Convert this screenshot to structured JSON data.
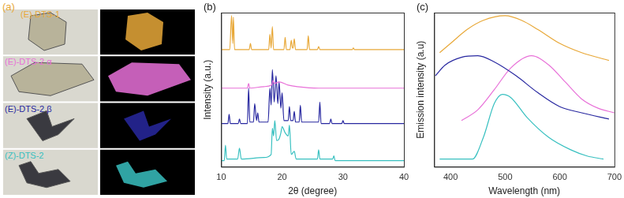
{
  "panel_a": {
    "panel_label": "(a)",
    "samples": [
      {
        "name": "(E)-DTS-1",
        "color": "#e8a838"
      },
      {
        "name": "(E)-DTS-2 α",
        "color": "#e870d8"
      },
      {
        "name": "(E)-DTS-2 β",
        "color": "#2828a0"
      },
      {
        "name": "(Z)-DTS-2",
        "color": "#38c0c0"
      }
    ]
  },
  "chart_data": [
    {
      "type": "line",
      "panel_label": "(b)",
      "x_label": "2θ (degree)",
      "y_label": "Intensity (a.u.)",
      "xlim": [
        10,
        40
      ],
      "xticks": [
        10,
        20,
        30,
        40
      ],
      "ylim": [
        0,
        100
      ],
      "tick_labels": "x",
      "grid": false,
      "series": [
        {
          "name": "(E)-DTS-1",
          "color": "#e8a838",
          "x": [
            10,
            11.4,
            11.7,
            11.9,
            12.0,
            12.2,
            14.6,
            14.8,
            15.0,
            17.8,
            18.0,
            18.2,
            18.4,
            18.6,
            20.3,
            20.5,
            20.7,
            21.3,
            21.5,
            21.7,
            21.8,
            22.0,
            22.2,
            24.1,
            24.3,
            24.5,
            25.8,
            26.0,
            26.2,
            31.5,
            31.7,
            31.9,
            40
          ],
          "values": [
            76,
            76,
            98,
            80,
            97,
            76,
            76,
            80,
            76,
            76,
            86,
            77,
            91,
            76,
            76,
            84,
            76,
            76,
            82,
            77,
            77,
            83,
            76,
            76,
            85,
            76,
            76,
            78,
            76,
            76,
            77,
            76,
            76
          ]
        },
        {
          "name": "(E)-DTS-2 α",
          "color": "#e870d8",
          "x": [
            10,
            14.3,
            14.5,
            14.7,
            17,
            18.3,
            18.5,
            18.7,
            19.5,
            21,
            22.5,
            26,
            40
          ],
          "values": [
            51,
            51,
            54,
            51,
            52,
            53,
            56,
            54,
            55,
            53,
            52,
            51,
            51
          ]
        },
        {
          "name": "(E)-DTS-2 β",
          "color": "#2828a0",
          "x": [
            10,
            11.1,
            11.3,
            11.5,
            12.8,
            13.0,
            13.2,
            14.3,
            14.5,
            14.7,
            15.3,
            15.5,
            15.8,
            16.0,
            16.2,
            17.7,
            18.0,
            18.2,
            18.4,
            18.7,
            19.0,
            19.3,
            19.5,
            19.8,
            20.0,
            20.3,
            21.0,
            21.2,
            21.4,
            21.8,
            22.0,
            22.2,
            22.8,
            23.0,
            23.2,
            26.0,
            26.2,
            26.4,
            27.8,
            28.0,
            28.2,
            29.8,
            30.0,
            30.2,
            40
          ],
          "values": [
            28,
            28,
            34,
            28,
            28,
            31,
            28,
            28,
            51,
            29,
            29,
            41,
            30,
            35,
            29,
            29,
            51,
            40,
            63,
            42,
            59,
            41,
            55,
            38,
            48,
            30,
            30,
            39,
            30,
            30,
            36,
            29,
            29,
            40,
            29,
            29,
            42,
            28,
            28,
            31,
            28,
            28,
            30,
            28,
            28
          ]
        },
        {
          "name": "(Z)-DTS-2",
          "color": "#38c0c0",
          "x": [
            10,
            10.5,
            10.7,
            10.9,
            12.7,
            13.0,
            13.3,
            17.0,
            18.2,
            18.4,
            18.6,
            18.8,
            19.1,
            19.5,
            19.8,
            20.0,
            20.5,
            21.0,
            21.2,
            21.5,
            22.0,
            22.3,
            25.8,
            26.0,
            26.2,
            28.3,
            28.5,
            28.7,
            40
          ],
          "values": [
            4,
            4,
            14,
            5,
            5,
            12,
            5,
            6,
            8,
            25,
            20,
            30,
            17,
            18,
            22,
            26,
            22,
            20,
            27,
            8,
            10,
            5,
            5,
            11,
            5,
            5,
            7,
            4,
            4
          ]
        }
      ]
    },
    {
      "type": "line",
      "panel_label": "(c)",
      "x_label": "Wavelength (nm)",
      "y_label": "Emission intensity (a.u)",
      "xlim": [
        370,
        700
      ],
      "xticks": [
        400,
        500,
        600,
        700
      ],
      "ylim": [
        0,
        100
      ],
      "tick_labels": "x",
      "grid": false,
      "series": [
        {
          "name": "(E)-DTS-1",
          "color": "#e8a838",
          "x": [
            380,
            400,
            430,
            460,
            500,
            530,
            560,
            600,
            640,
            690
          ],
          "values": [
            74,
            80,
            89,
            95,
            98,
            95,
            89,
            80,
            74,
            69
          ]
        },
        {
          "name": "(E)-DTS-2 β",
          "color": "#2828a0",
          "x": [
            372,
            390,
            420,
            450,
            480,
            520,
            560,
            600,
            640,
            690
          ],
          "values": [
            59,
            66,
            71,
            72,
            68,
            59,
            48,
            39,
            35,
            31
          ]
        },
        {
          "name": "(E)-DTS-2 α",
          "color": "#e870d8",
          "x": [
            420,
            450,
            480,
            510,
            548,
            580,
            610,
            640,
            670,
            700
          ],
          "values": [
            30,
            37,
            50,
            64,
            72,
            66,
            55,
            44,
            38,
            35
          ]
        },
        {
          "name": "(Z)-DTS-2",
          "color": "#38c0c0",
          "x": [
            380,
            440,
            460,
            480,
            495,
            510,
            540,
            580,
            620,
            650,
            680
          ],
          "values": [
            5,
            5,
            19,
            41,
            47,
            45,
            32,
            19,
            11,
            7,
            5
          ]
        }
      ]
    }
  ]
}
